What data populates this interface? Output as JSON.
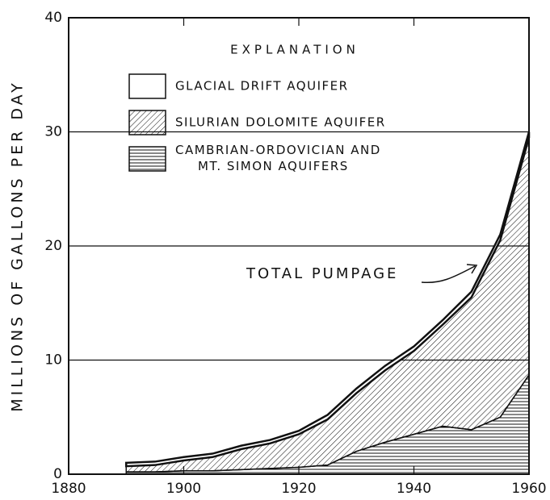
{
  "chart_data": {
    "type": "stacked_area",
    "ylabel": "MILLIONS OF GALLONS PER DAY",
    "legend_title": "EXPLANATION",
    "annotation": "TOTAL PUMPAGE",
    "x": [
      1890,
      1895,
      1900,
      1905,
      1910,
      1915,
      1920,
      1925,
      1930,
      1935,
      1940,
      1945,
      1950,
      1955,
      1960
    ],
    "series": [
      {
        "name": "CAMBRIAN-ORDOVICIAN AND MT. SIMON AQUIFERS",
        "color": "#111111",
        "hatch": "horizontal",
        "values": [
          0.2,
          0.2,
          0.3,
          0.3,
          0.4,
          0.5,
          0.6,
          0.8,
          2.0,
          2.8,
          3.5,
          4.2,
          3.9,
          5.0,
          8.7
        ]
      },
      {
        "name": "SILURIAN DOLOMITE AQUIFER",
        "color": "#111111",
        "hatch": "diagonal",
        "values": [
          0.5,
          0.6,
          0.9,
          1.2,
          1.8,
          2.2,
          2.9,
          4.0,
          5.1,
          6.3,
          7.3,
          8.9,
          11.6,
          15.5,
          20.8
        ]
      },
      {
        "name": "GLACIAL DRIFT AQUIFER",
        "color": "#111111",
        "hatch": "none",
        "values": [
          0.3,
          0.3,
          0.3,
          0.3,
          0.3,
          0.3,
          0.3,
          0.4,
          0.4,
          0.4,
          0.4,
          0.4,
          0.5,
          0.5,
          0.5
        ]
      }
    ],
    "xlim": [
      1880,
      1960
    ],
    "xticks": [
      1880,
      1900,
      1920,
      1940,
      1960
    ],
    "ylim": [
      0,
      40
    ],
    "yticks": [
      0,
      10,
      20,
      30,
      40
    ],
    "grid": true
  }
}
